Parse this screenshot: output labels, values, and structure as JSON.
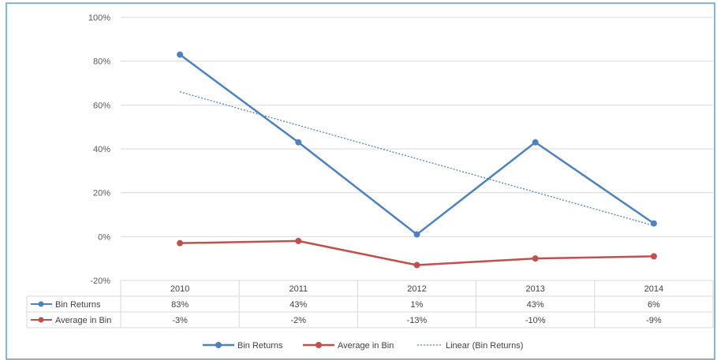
{
  "chart_data": {
    "type": "line",
    "categories": [
      "2010",
      "2011",
      "2012",
      "2013",
      "2014"
    ],
    "series": [
      {
        "name": "Bin Returns",
        "values": [
          83,
          43,
          1,
          43,
          6
        ],
        "labels": [
          "83%",
          "43%",
          "1%",
          "43%",
          "6%"
        ],
        "color": "#4F81BD"
      },
      {
        "name": "Average in Bin",
        "values": [
          -3,
          -2,
          -13,
          -10,
          -9
        ],
        "labels": [
          "-3%",
          "-2%",
          "-13%",
          "-10%",
          "-9%"
        ],
        "color": "#C0504D"
      }
    ],
    "trendline": {
      "name": "Linear (Bin Returns)",
      "of": "Bin Returns",
      "start": 66,
      "end": 5,
      "color": "#4F81BD",
      "style": "dotted"
    },
    "ylim": [
      -20,
      100
    ],
    "yticks": [
      100,
      80,
      60,
      40,
      20,
      0,
      -20
    ],
    "ytick_labels": [
      "100%",
      "80%",
      "60%",
      "40%",
      "20%",
      "0%",
      "-20%"
    ],
    "grid": true,
    "data_table": true,
    "legend_position": "bottom",
    "title": "",
    "xlabel": "",
    "ylabel": ""
  }
}
